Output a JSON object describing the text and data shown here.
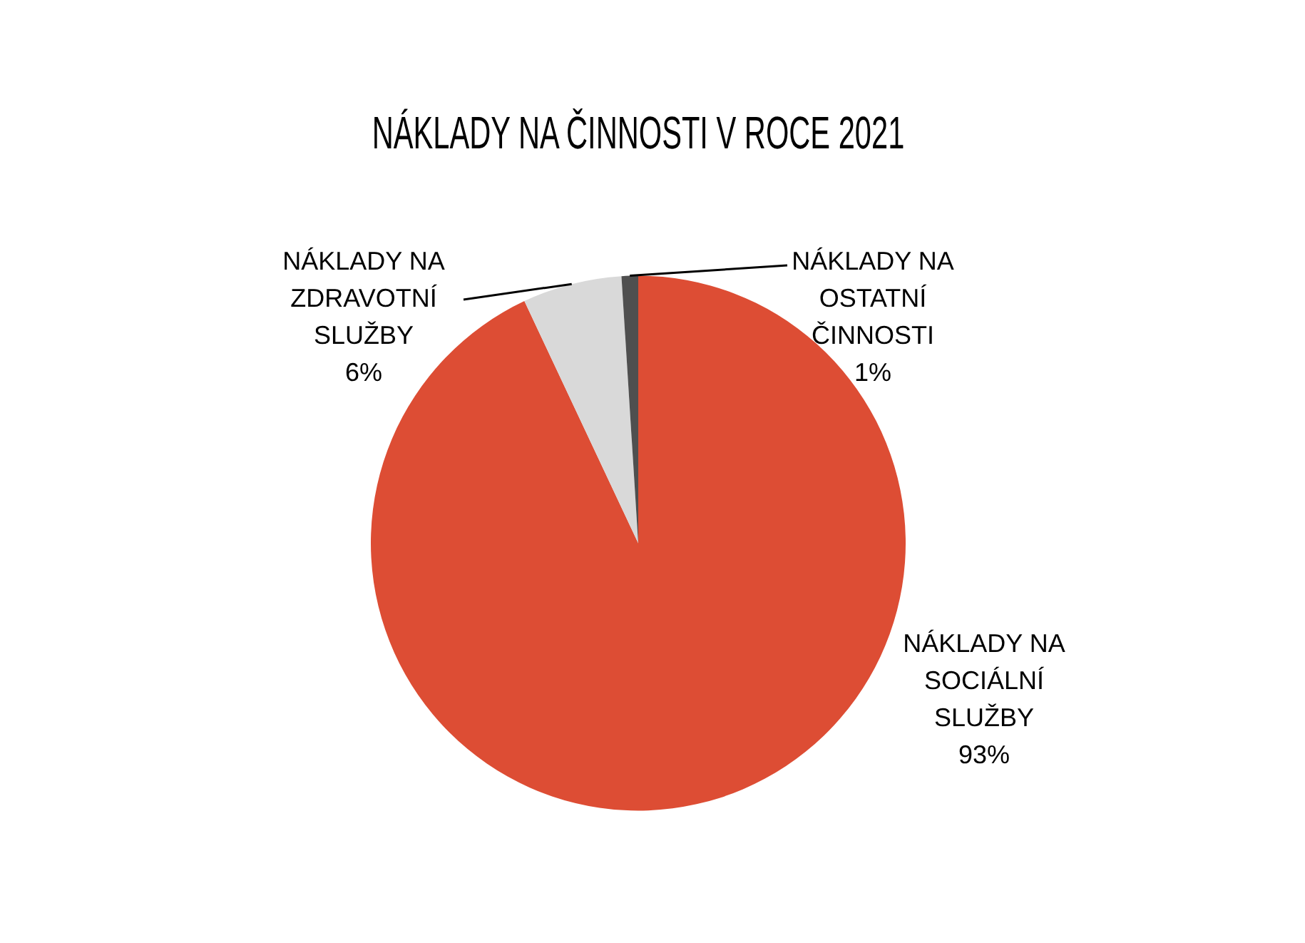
{
  "chart_data": {
    "type": "pie",
    "title": "NÁKLADY NA ČINNOSTI V ROCE 2021",
    "categories": [
      "NÁKLADY NA SOCIÁLNÍ SLUŽBY",
      "NÁKLADY NA ZDRAVOTNÍ SLUŽBY",
      "NÁKLADY NA OSTATNÍ ČINNOSTI"
    ],
    "values": [
      93,
      6,
      1
    ],
    "colors": [
      "#dd4d34",
      "#d9d9d9",
      "#4f4f4f"
    ],
    "value_labels": [
      "93%",
      "6%",
      "1%"
    ],
    "legend": false
  }
}
